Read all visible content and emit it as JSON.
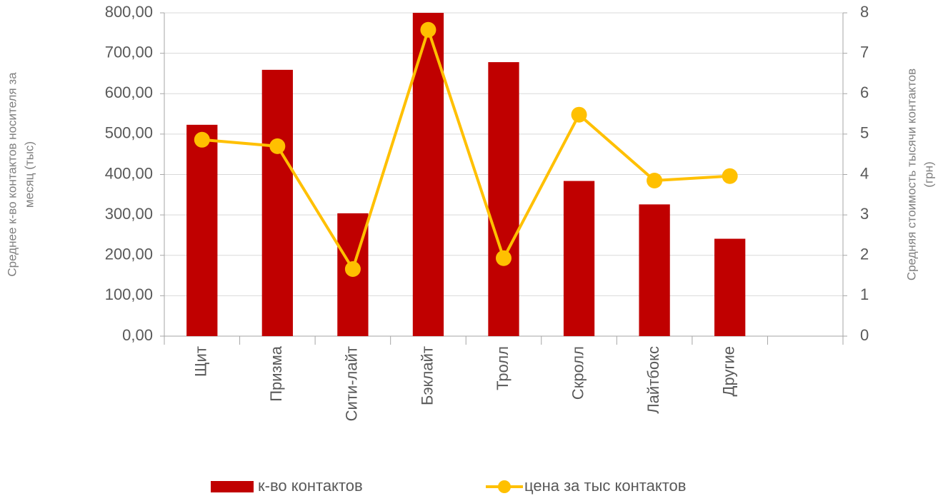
{
  "chart_data": {
    "type": "bar_line",
    "categories": [
      "Щит",
      "Призма",
      "Сити-лайт",
      "Бэклайт",
      "Тролл",
      "Скролл",
      "Лайтбокс",
      "Другие",
      null
    ],
    "series": [
      {
        "name": "к-во контактов",
        "type": "bar",
        "color": "#c00000",
        "values": [
          523,
          659,
          304,
          800,
          678,
          384,
          326,
          241,
          null
        ]
      },
      {
        "name": "цена за тыс контактов",
        "type": "line",
        "axis": "y2",
        "color": "#ffc000",
        "values": [
          4.86,
          4.7,
          1.66,
          7.58,
          1.93,
          5.48,
          3.85,
          3.96,
          null
        ]
      }
    ],
    "ylabel": [
      "Среднее к-во контактов носителя за",
      "месяц (тыс)"
    ],
    "y2label": [
      "Средняя стоимость тысячи контактов",
      "(грн)"
    ],
    "ylim": [
      0,
      800
    ],
    "yticks": [
      {
        "value": 0,
        "label": "0,00"
      },
      {
        "value": 100,
        "label": "100,00"
      },
      {
        "value": 200,
        "label": "200,00"
      },
      {
        "value": 300,
        "label": "300,00"
      },
      {
        "value": 400,
        "label": "400,00"
      },
      {
        "value": 500,
        "label": "500,00"
      },
      {
        "value": 600,
        "label": "600,00"
      },
      {
        "value": 700,
        "label": "700,00"
      },
      {
        "value": 800,
        "label": "800,00"
      }
    ],
    "y2lim": [
      0,
      8
    ],
    "y2ticks": [
      0,
      1,
      2,
      3,
      4,
      5,
      6,
      7,
      8
    ],
    "grid": true,
    "legend": "bottom"
  }
}
